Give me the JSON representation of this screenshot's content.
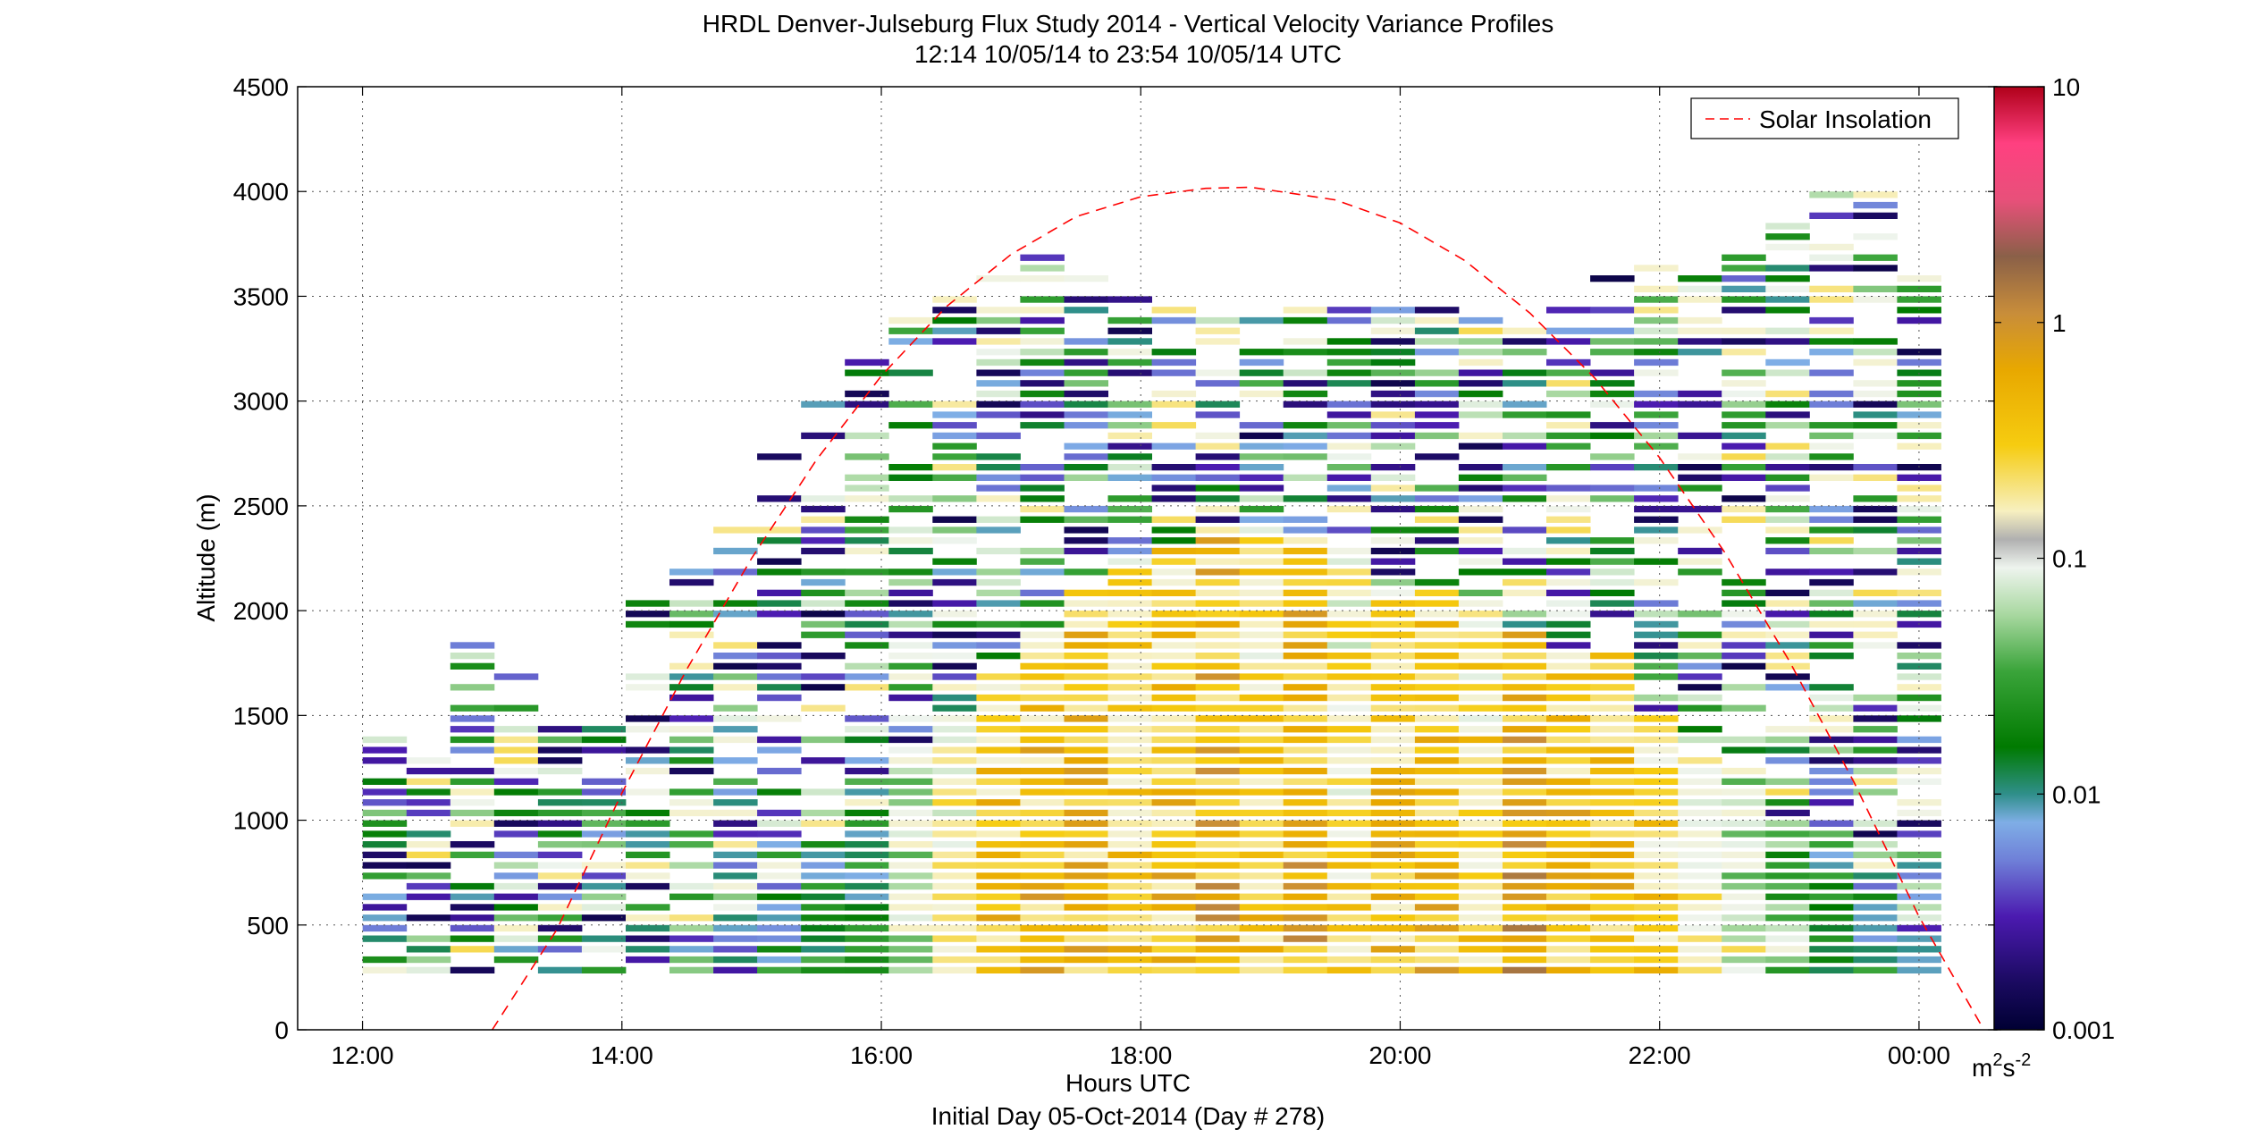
{
  "chart_data": {
    "type": "heatmap",
    "title_lines": [
      "HRDL Denver-Julseburg Flux Study 2014 - Vertical Velocity Variance Profiles",
      "12:14 10/05/14 to 23:54 10/05/14  UTC"
    ],
    "xlabel": "Hours UTC",
    "xlabel2": "Initial Day 05-Oct-2014 (Day # 278)",
    "ylabel": "Altitude (m)",
    "xlim": [
      11.5,
      24.6
    ],
    "ylim": [
      0,
      4500
    ],
    "x_ticks": [
      12,
      14,
      16,
      18,
      20,
      22,
      24
    ],
    "x_tick_labels": [
      "12:00",
      "14:00",
      "16:00",
      "18:00",
      "20:00",
      "22:00",
      "00:00"
    ],
    "y_ticks": [
      0,
      500,
      1000,
      1500,
      2000,
      2500,
      3000,
      3500,
      4000,
      4500
    ],
    "y_tick_labels": [
      "0",
      "500",
      "1000",
      "1500",
      "2000",
      "2500",
      "3000",
      "3500",
      "4000",
      "4500"
    ],
    "grid": true,
    "colorbar": {
      "scale": "log",
      "min": 0.001,
      "max": 10,
      "tick_values": [
        0.001,
        0.01,
        0.1,
        1,
        10
      ],
      "tick_labels": [
        "0.001",
        "0.01",
        "0.1",
        "1",
        "10"
      ],
      "unit_base": "m",
      "unit_sup1": "2",
      "unit_mid": "s",
      "unit_sup2": "-2"
    },
    "legend": {
      "label": "Solar Insolation",
      "placement": "top-right",
      "color": "#ff0000",
      "style": "dashed"
    },
    "solar_curve": {
      "x": [
        13.0,
        13.5,
        14.0,
        14.5,
        15.0,
        15.5,
        16.0,
        16.5,
        17.0,
        17.5,
        18.0,
        18.5,
        18.85,
        19.5,
        20.0,
        20.5,
        21.0,
        21.5,
        22.0,
        22.5,
        23.0,
        23.5,
        24.0,
        24.5
      ],
      "y": [
        0,
        480,
        1130,
        1720,
        2250,
        2720,
        3120,
        3450,
        3700,
        3880,
        3975,
        4015,
        4020,
        3960,
        3850,
        3670,
        3420,
        3110,
        2730,
        2280,
        1760,
        1180,
        540,
        0
      ]
    },
    "profiles": {
      "start_time": 12.17,
      "end_time": 24.0,
      "count": 36,
      "bottom_altitude": 250,
      "top_altitudes": [
        1400,
        1300,
        1880,
        1700,
        1500,
        1500,
        2100,
        2300,
        2600,
        2800,
        3000,
        3300,
        3400,
        3500,
        3650,
        3700,
        3650,
        3600,
        3550,
        3450,
        3400,
        3450,
        3500,
        3500,
        3450,
        3400,
        3500,
        3500,
        3600,
        3700,
        3750,
        3800,
        3900,
        4000,
        4100,
        3600
      ],
      "sparse_top_start": [
        1400,
        1400,
        1400,
        1400,
        1400,
        1400,
        1700,
        2000,
        2200,
        2400,
        2500,
        2600,
        2700,
        3000,
        3300,
        3400,
        3400,
        3400,
        3400,
        3400,
        3400,
        3400,
        3400,
        3400,
        3400,
        3400,
        3400,
        3400,
        3400,
        3500,
        3500,
        3600,
        3700,
        3800,
        3900,
        3600
      ],
      "boundary_layer_top": [
        0,
        0,
        0,
        0,
        0,
        0,
        0,
        0,
        400,
        700,
        900,
        1000,
        1300,
        1500,
        1700,
        1900,
        2100,
        2200,
        2300,
        2400,
        2400,
        2300,
        2300,
        2100,
        2100,
        2000,
        1900,
        1800,
        1800,
        1500,
        1300,
        1200,
        1000,
        900,
        700,
        500
      ],
      "surface_log_variance": [
        -2.4,
        -2.3,
        -2.4,
        -2.3,
        -2.5,
        -2.4,
        -2.3,
        -2.2,
        -2.0,
        -1.8,
        -1.7,
        -1.6,
        -1.0,
        -0.6,
        -0.4,
        -0.3,
        -0.3,
        -0.4,
        -0.4,
        -0.2,
        -0.5,
        -0.2,
        -0.6,
        -0.4,
        -0.3,
        -0.5,
        -0.1,
        -0.3,
        -0.4,
        -0.5,
        -0.8,
        -0.9,
        -1.2,
        -1.5,
        -1.8,
        -2.0
      ]
    }
  }
}
